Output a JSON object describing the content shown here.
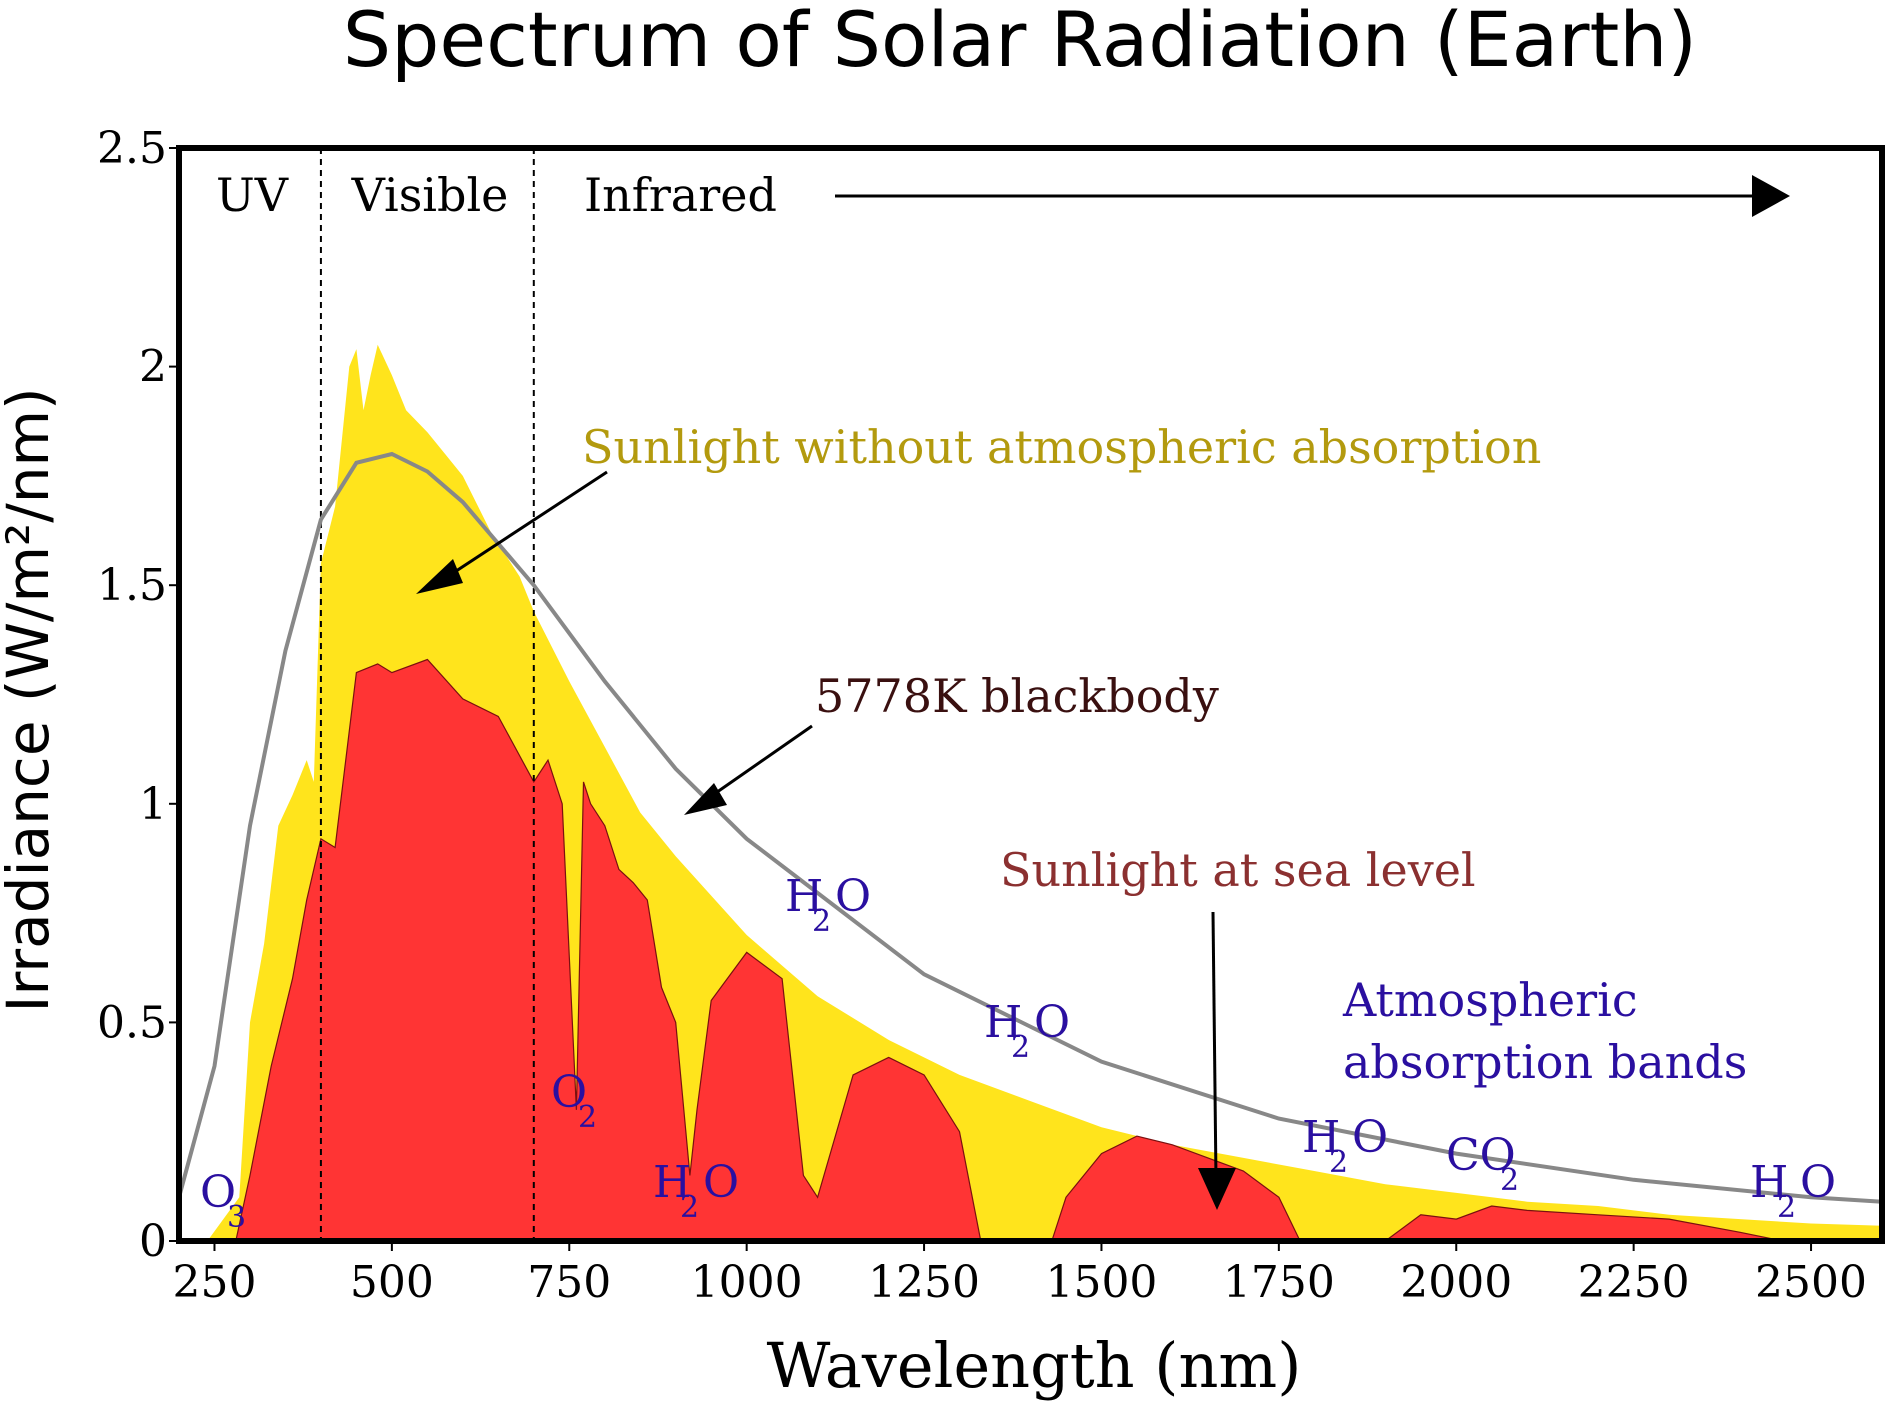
{
  "chart_data": {
    "type": "area",
    "title": "Spectrum of Solar Radiation (Earth)",
    "xlabel": "Wavelength (nm)",
    "ylabel": "Irradiance (W/m²/nm)",
    "xlim": [
      200,
      2600
    ],
    "ylim": [
      0,
      2.5
    ],
    "x_ticks": [
      250,
      500,
      750,
      1000,
      1250,
      1500,
      1750,
      2000,
      2250,
      2500
    ],
    "x_tick_labels": [
      "250",
      "500",
      "750",
      "1000",
      "1250",
      "1500",
      "1750",
      "2000",
      "2250",
      "2500"
    ],
    "y_ticks": [
      0,
      0.5,
      1,
      1.5,
      2,
      2.5
    ],
    "y_tick_labels": [
      "0",
      "0.5",
      "1",
      "1.5",
      "2",
      "2.5"
    ],
    "grid": false,
    "regions": [
      {
        "label": "UV",
        "from": 200,
        "to": 400
      },
      {
        "label": "Visible",
        "from": 400,
        "to": 700
      },
      {
        "label": "Infrared",
        "from": 700,
        "to": 2600
      }
    ],
    "series": [
      {
        "name": "Sunlight without atmospheric absorption",
        "color": "#ffe41c",
        "x": [
          240,
          285,
          300,
          320,
          340,
          360,
          380,
          390,
          400,
          420,
          440,
          450,
          460,
          470,
          480,
          500,
          520,
          550,
          575,
          600,
          640,
          680,
          700,
          750,
          800,
          850,
          900,
          1000,
          1100,
          1200,
          1300,
          1400,
          1500,
          1600,
          1700,
          1800,
          1900,
          2000,
          2100,
          2200,
          2300,
          2400,
          2500,
          2600
        ],
        "values": [
          0.0,
          0.1,
          0.5,
          0.68,
          0.95,
          1.02,
          1.1,
          1.05,
          1.55,
          1.68,
          2.0,
          2.04,
          1.9,
          1.98,
          2.05,
          1.98,
          1.9,
          1.85,
          1.8,
          1.75,
          1.62,
          1.52,
          1.44,
          1.28,
          1.13,
          0.98,
          0.88,
          0.7,
          0.56,
          0.46,
          0.38,
          0.32,
          0.26,
          0.22,
          0.19,
          0.16,
          0.13,
          0.11,
          0.09,
          0.08,
          0.06,
          0.05,
          0.04,
          0.035
        ]
      },
      {
        "name": "5778K blackbody",
        "color": "#888888",
        "x": [
          200,
          250,
          300,
          350,
          400,
          450,
          500,
          550,
          600,
          700,
          800,
          900,
          1000,
          1250,
          1500,
          1750,
          2000,
          2250,
          2500,
          2600
        ],
        "values": [
          0.1,
          0.4,
          0.95,
          1.35,
          1.65,
          1.78,
          1.8,
          1.76,
          1.69,
          1.5,
          1.28,
          1.08,
          0.92,
          0.61,
          0.41,
          0.28,
          0.2,
          0.14,
          0.1,
          0.09
        ]
      },
      {
        "name": "Sunlight at sea level",
        "color": "#ff3434",
        "x": [
          280,
          300,
          330,
          360,
          380,
          400,
          420,
          450,
          480,
          500,
          550,
          600,
          650,
          700,
          720,
          740,
          760,
          770,
          780,
          800,
          820,
          840,
          860,
          880,
          900,
          920,
          930,
          950,
          1000,
          1050,
          1080,
          1100,
          1150,
          1200,
          1250,
          1300,
          1330,
          1350,
          1400,
          1430,
          1450,
          1500,
          1550,
          1600,
          1700,
          1750,
          1780,
          1820,
          1900,
          1950,
          2000,
          2050,
          2100,
          2200,
          2300,
          2400,
          2460
        ],
        "values": [
          0.0,
          0.15,
          0.4,
          0.6,
          0.78,
          0.92,
          0.9,
          1.3,
          1.32,
          1.3,
          1.33,
          1.24,
          1.2,
          1.05,
          1.1,
          1.0,
          0.3,
          1.05,
          1.0,
          0.95,
          0.85,
          0.82,
          0.78,
          0.58,
          0.5,
          0.15,
          0.3,
          0.55,
          0.66,
          0.6,
          0.15,
          0.1,
          0.38,
          0.42,
          0.38,
          0.25,
          0.0,
          0.0,
          0.0,
          0.0,
          0.1,
          0.2,
          0.24,
          0.22,
          0.16,
          0.1,
          0.0,
          0.0,
          0.0,
          0.06,
          0.05,
          0.08,
          0.07,
          0.06,
          0.05,
          0.02,
          0.0
        ]
      }
    ],
    "region_labels": [
      "UV",
      "Visible",
      "Infrared"
    ],
    "annotations": {
      "above_atmosphere": "Sunlight without atmospheric absorption",
      "blackbody": "5778K blackbody",
      "sea_level": "Sunlight at sea level",
      "bands": [
        "Atmospheric",
        "absorption bands"
      ]
    },
    "absorbers": [
      {
        "main": "O",
        "sub": "3",
        "at_nm": 270
      },
      {
        "main": "O",
        "sub": "2",
        "at_nm": 760
      },
      {
        "main": "H",
        "sub": "2",
        "tail": "O",
        "at_nm": 930
      },
      {
        "main": "H",
        "sub": "2",
        "tail": "O",
        "at_nm": 1130
      },
      {
        "main": "H",
        "sub": "2",
        "tail": "O",
        "at_nm": 1400
      },
      {
        "main": "H",
        "sub": "2",
        "tail": "O",
        "at_nm": 1870
      },
      {
        "main": "CO",
        "sub": "2",
        "at_nm": 2050
      },
      {
        "main": "H",
        "sub": "2",
        "tail": "O",
        "at_nm": 2520
      }
    ],
    "colors": {
      "above_atmosphere_text": "#b39a0e",
      "blackbody_text": "#3a1010",
      "sea_level_text": "#8b3030",
      "absorber_text": "#2a0fa0"
    }
  }
}
